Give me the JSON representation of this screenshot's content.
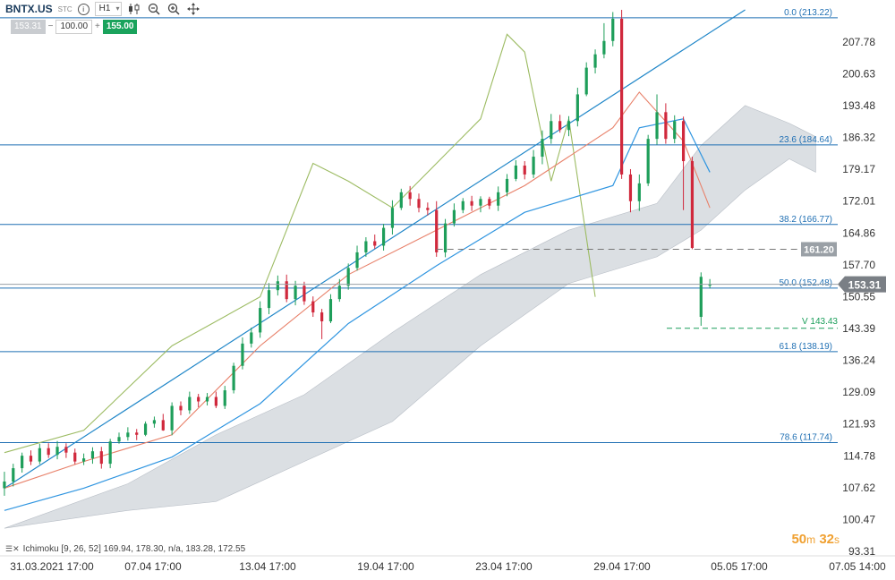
{
  "toolbar": {
    "symbol": "BNTX.US",
    "instrument_tag": "STC",
    "info_label": "i",
    "timeframe": "H1"
  },
  "order": {
    "bid": "153.31",
    "minus": "−",
    "quantity": "100.00",
    "plus": "+",
    "ask": "155.00"
  },
  "indicator_legend": "Ichimoku [9, 26, 52] 169.94, 178.30, n/a, 183.28, 172.55",
  "countdown": {
    "minutes": "50",
    "minutes_unit": "m",
    "seconds": "32",
    "seconds_unit": "s"
  },
  "colors": {
    "bull_candle": "#1e9e5a",
    "bear_candle": "#d0283c",
    "tenkan": "#e8816a",
    "kijun": "#2f95e0",
    "chikou": "#9cbb62",
    "cloud": "#cfd4da",
    "fib_line": "#1f6fb3",
    "trend_line": "#1f86c8",
    "current_price_tag": "#7a7f85",
    "countdown": "#f0a030"
  },
  "chart_data": {
    "type": "candlestick",
    "ylim": [
      93.31,
      216
    ],
    "y_ticks": [
      "207.78",
      "200.63",
      "193.48",
      "186.32",
      "179.17",
      "172.01",
      "164.86",
      "157.70",
      "150.55",
      "143.39",
      "136.24",
      "129.09",
      "121.93",
      "114.78",
      "107.62",
      "100.47",
      "93.31"
    ],
    "x_ticks": [
      "31.03.2021 17:00",
      "07.04 17:00",
      "13.04 17:00",
      "19.04 17:00",
      "23.04 17:00",
      "29.04 17:00",
      "05.05 17:00",
      "07.05 14:00"
    ],
    "fibonacci": [
      {
        "label": "0.0 (213.22)",
        "value": 213.22
      },
      {
        "label": "23.6 (184.64)",
        "value": 184.64
      },
      {
        "label": "38.2 (166.77)",
        "value": 166.77
      },
      {
        "label": "50.0 (152.48)",
        "value": 152.48
      },
      {
        "label": "61.8 (138.19)",
        "value": 138.19
      },
      {
        "label": "78.6 (117.74)",
        "value": 117.74
      }
    ],
    "price_tags": [
      {
        "label": "161.20",
        "value": 161.2
      },
      {
        "label": "153.31",
        "value": 153.31
      }
    ],
    "volume_level": {
      "label": "V 143.43",
      "value": 143.43
    },
    "trend_line": [
      {
        "x": 0,
        "y": 107.5
      },
      {
        "x": 84,
        "y": 215
      }
    ],
    "candles": [
      [
        107.5,
        109.0,
        111.2,
        105.8
      ],
      [
        109.0,
        112.0,
        113.0,
        107.9
      ],
      [
        112.0,
        114.8,
        115.5,
        111.0
      ],
      [
        114.8,
        113.5,
        116.0,
        112.7
      ],
      [
        113.5,
        116.5,
        117.5,
        112.9
      ],
      [
        116.5,
        115.0,
        117.6,
        114.3
      ],
      [
        115.0,
        116.8,
        118.1,
        114.0
      ],
      [
        116.8,
        115.5,
        117.6,
        114.3
      ],
      [
        115.5,
        113.5,
        116.4,
        112.9
      ],
      [
        113.5,
        114.2,
        115.3,
        112.7
      ],
      [
        114.2,
        115.8,
        116.7,
        113.0
      ],
      [
        115.8,
        113.0,
        116.8,
        111.9
      ],
      [
        113.0,
        118.0,
        118.6,
        112.0
      ],
      [
        118.0,
        119.0,
        120.0,
        117.5
      ],
      [
        119.0,
        120.0,
        121.2,
        118.2
      ],
      [
        120.0,
        119.5,
        120.8,
        118.3
      ],
      [
        119.5,
        122.0,
        122.5,
        119.2
      ],
      [
        122.0,
        122.8,
        123.6,
        121.1
      ],
      [
        122.8,
        120.5,
        124.2,
        120.4
      ],
      [
        120.5,
        126.0,
        126.8,
        119.4
      ],
      [
        126.0,
        125.0,
        127.0,
        123.9
      ],
      [
        125.0,
        128.0,
        129.2,
        124.2
      ],
      [
        128.0,
        127.0,
        128.7,
        125.7
      ],
      [
        127.0,
        128.0,
        128.9,
        126.1
      ],
      [
        128.0,
        126.0,
        129.2,
        125.5
      ],
      [
        126.0,
        129.5,
        130.5,
        125.3
      ],
      [
        129.5,
        135.0,
        135.7,
        128.8
      ],
      [
        135.0,
        140.0,
        141.4,
        134.2
      ],
      [
        140.0,
        142.5,
        143.6,
        139.1
      ],
      [
        142.5,
        148.0,
        149.5,
        141.3
      ],
      [
        148.0,
        152.0,
        153.6,
        146.6
      ],
      [
        152.0,
        154.0,
        155.3,
        150.8
      ],
      [
        154.0,
        150.0,
        155.5,
        149.3
      ],
      [
        150.0,
        153.0,
        154.1,
        148.6
      ],
      [
        153.0,
        149.5,
        153.9,
        148.7
      ],
      [
        149.5,
        147.0,
        150.6,
        146.0
      ],
      [
        147.0,
        145.0,
        147.8,
        141.0
      ],
      [
        145.0,
        150.0,
        151.1,
        144.6
      ],
      [
        150.0,
        153.0,
        154.5,
        149.4
      ],
      [
        153.0,
        157.0,
        158.0,
        152.1
      ],
      [
        157.0,
        160.5,
        162.0,
        156.4
      ],
      [
        160.5,
        163.0,
        163.9,
        159.5
      ],
      [
        163.0,
        162.0,
        164.5,
        161.3
      ],
      [
        162.0,
        166.0,
        166.9,
        160.9
      ],
      [
        166.0,
        170.5,
        172.2,
        164.5
      ],
      [
        170.5,
        174.0,
        174.8,
        170.0
      ],
      [
        174.0,
        172.5,
        175.4,
        171.0
      ],
      [
        172.5,
        170.5,
        173.7,
        169.5
      ],
      [
        170.5,
        170.0,
        171.7,
        168.8
      ],
      [
        170.0,
        160.5,
        172.0,
        159.5
      ],
      [
        160.5,
        167.0,
        168.0,
        159.4
      ],
      [
        167.0,
        170.0,
        171.5,
        166.3
      ],
      [
        170.0,
        172.0,
        172.7,
        169.3
      ],
      [
        172.0,
        171.0,
        173.2,
        169.8
      ],
      [
        171.0,
        172.5,
        173.1,
        169.5
      ],
      [
        172.5,
        171.0,
        173.0,
        170.2
      ],
      [
        171.0,
        174.0,
        175.3,
        169.8
      ],
      [
        174.0,
        177.0,
        178.1,
        173.1
      ],
      [
        177.0,
        180.0,
        181.2,
        176.5
      ],
      [
        180.0,
        178.0,
        181.0,
        176.9
      ],
      [
        178.0,
        182.0,
        183.5,
        177.2
      ],
      [
        182.0,
        186.0,
        187.9,
        180.3
      ],
      [
        186.0,
        190.0,
        191.6,
        184.9
      ],
      [
        190.0,
        188.0,
        191.4,
        187.4
      ],
      [
        188.0,
        190.0,
        191.1,
        186.6
      ],
      [
        190.0,
        196.0,
        197.5,
        188.8
      ],
      [
        196.0,
        202.0,
        203.2,
        195.6
      ],
      [
        202.0,
        205.0,
        206.1,
        200.7
      ],
      [
        205.0,
        208.0,
        212.0,
        204.1
      ],
      [
        208.0,
        213.0,
        214.5,
        206.8
      ],
      [
        213.0,
        178.0,
        215.0,
        177.0
      ],
      [
        178.0,
        172.0,
        179.2,
        169.5
      ],
      [
        172.0,
        176.0,
        178.0,
        169.8
      ],
      [
        176.0,
        186.0,
        186.9,
        175.4
      ],
      [
        186.0,
        192.0,
        196.0,
        184.7
      ],
      [
        192.0,
        186.0,
        194.0,
        184.9
      ],
      [
        186.0,
        190.0,
        191.3,
        185.0
      ],
      [
        190.0,
        181.0,
        191.0,
        170.0
      ],
      [
        181.0,
        161.5,
        182.0,
        161.2
      ],
      [
        146.0,
        155.0,
        156.0,
        144.0
      ],
      [
        153.0,
        153.31,
        154.5,
        152.4
      ]
    ],
    "tenkan": [
      [
        0,
        107.5
      ],
      [
        9,
        113.5
      ],
      [
        19,
        119.5
      ],
      [
        29,
        139.5
      ],
      [
        39,
        155.5
      ],
      [
        49,
        165.5
      ],
      [
        59,
        175.5
      ],
      [
        69,
        188.5
      ],
      [
        72,
        196.5
      ],
      [
        77,
        185.5
      ],
      [
        80,
        170.5
      ]
    ],
    "kijun": [
      [
        0,
        102.5
      ],
      [
        9,
        107.5
      ],
      [
        19,
        114.5
      ],
      [
        29,
        126.5
      ],
      [
        39,
        144.5
      ],
      [
        49,
        157.5
      ],
      [
        59,
        169.5
      ],
      [
        69,
        175.5
      ],
      [
        72,
        188.5
      ],
      [
        77,
        190.5
      ],
      [
        80,
        178.5
      ]
    ],
    "chikou": [
      [
        0,
        115.5
      ],
      [
        9,
        120.5
      ],
      [
        19,
        139.5
      ],
      [
        29,
        150.5
      ],
      [
        35,
        180.5
      ],
      [
        39,
        176.5
      ],
      [
        44,
        170.5
      ],
      [
        49,
        180.5
      ],
      [
        54,
        190.5
      ],
      [
        57,
        209.5
      ],
      [
        59,
        205.5
      ],
      [
        62,
        176.5
      ],
      [
        64,
        190.5
      ],
      [
        67,
        150.5
      ]
    ],
    "cloud": {
      "span_a": [
        [
          0,
          98.5
        ],
        [
          14,
          108.5
        ],
        [
          24,
          119.5
        ],
        [
          34,
          128.5
        ],
        [
          44,
          142.5
        ],
        [
          54,
          155.5
        ],
        [
          64,
          165.5
        ],
        [
          74,
          171.5
        ],
        [
          79,
          184.5
        ],
        [
          84,
          193.5
        ],
        [
          89,
          189.5
        ],
        [
          92,
          186.5
        ]
      ],
      "span_b": [
        [
          0,
          98.5
        ],
        [
          14,
          102.5
        ],
        [
          24,
          104.5
        ],
        [
          34,
          113.5
        ],
        [
          44,
          122.5
        ],
        [
          54,
          139.5
        ],
        [
          64,
          153.5
        ],
        [
          74,
          159.5
        ],
        [
          79,
          165.5
        ],
        [
          84,
          174.5
        ],
        [
          89,
          181.5
        ],
        [
          92,
          178.5
        ]
      ]
    }
  }
}
